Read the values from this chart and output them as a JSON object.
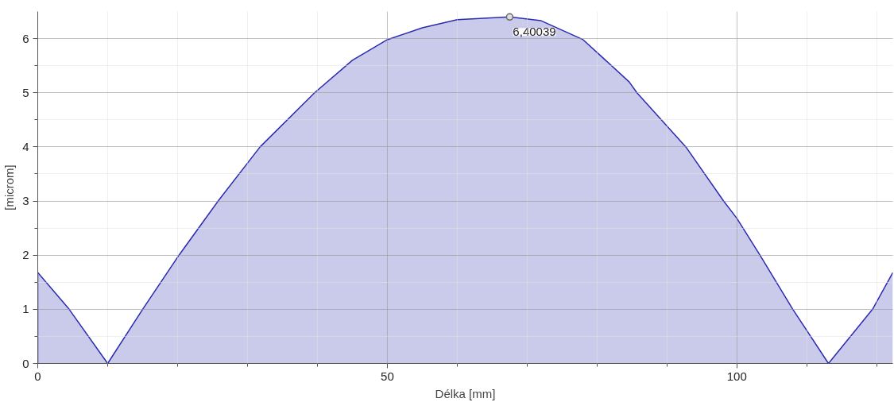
{
  "chart_data": {
    "type": "area",
    "xlabel": "Délka [mm]",
    "ylabel": "[microm]",
    "x": [
      0,
      4.5,
      10,
      15,
      20.2,
      25.8,
      31.8,
      39.6,
      45,
      50,
      55,
      60,
      67.5,
      72,
      78,
      84.6,
      85.7,
      92.7,
      98.1,
      100,
      103.3,
      108,
      113.1,
      119.4,
      122.3
    ],
    "series": [
      {
        "color": "#2b2bb0",
        "values": [
          1.68,
          1,
          0,
          1,
          2,
          3,
          4,
          5,
          5.6,
          5.98,
          6.2,
          6.35,
          6.4,
          6.33,
          5.98,
          5.2,
          5,
          4,
          3,
          2.68,
          2,
          1,
          0,
          1,
          1.68
        ]
      }
    ],
    "annotations": [
      {
        "text": "6,40039",
        "x": 67.5,
        "y": 6.4
      }
    ],
    "xlim": [
      0,
      122.3
    ],
    "ylim": [
      0,
      6.5
    ],
    "xticks": [
      0,
      {
        "value": 10,
        "label": null
      },
      {
        "value": 20,
        "label": null
      },
      {
        "value": 30,
        "label": null
      },
      {
        "value": 40,
        "label": null
      },
      50,
      {
        "value": 60,
        "label": null
      },
      {
        "value": 70,
        "label": null
      },
      {
        "value": 80,
        "label": null
      },
      {
        "value": 90,
        "label": null
      },
      100,
      {
        "value": 110,
        "label": null
      },
      {
        "value": 120,
        "label": null
      }
    ],
    "yticks": [
      0,
      {
        "value": 0.5,
        "label": null
      },
      1,
      {
        "value": 1.5,
        "label": null
      },
      2,
      {
        "value": 2.5,
        "label": null
      },
      3,
      {
        "value": 3.5,
        "label": null
      },
      4,
      {
        "value": 4.5,
        "label": null
      },
      5,
      {
        "value": 5.5,
        "label": null
      },
      6
    ],
    "grid": true
  }
}
